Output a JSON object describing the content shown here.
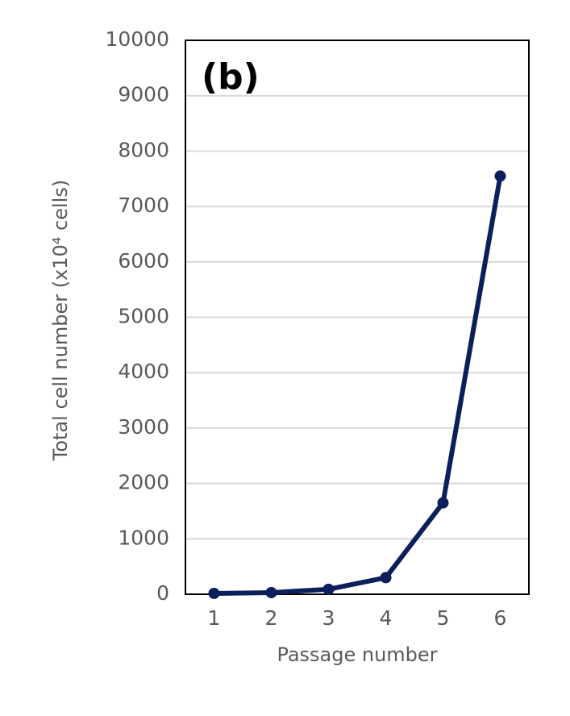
{
  "chart_data": {
    "type": "line",
    "annotation": "(b)",
    "x_label": "Passage number",
    "y_label": "Total cell number (x10⁴ cells)",
    "categories": [
      "1",
      "2",
      "3",
      "4",
      "5",
      "6"
    ],
    "series": [
      {
        "name": "Total cell number",
        "color": "#0b1f5c",
        "values": [
          15,
          30,
          90,
          300,
          1650,
          7550
        ]
      }
    ],
    "ylim": [
      0,
      10000
    ],
    "yticks": [
      0,
      1000,
      2000,
      3000,
      4000,
      5000,
      6000,
      7000,
      8000,
      9000,
      10000
    ],
    "grid": true,
    "legend": false
  }
}
